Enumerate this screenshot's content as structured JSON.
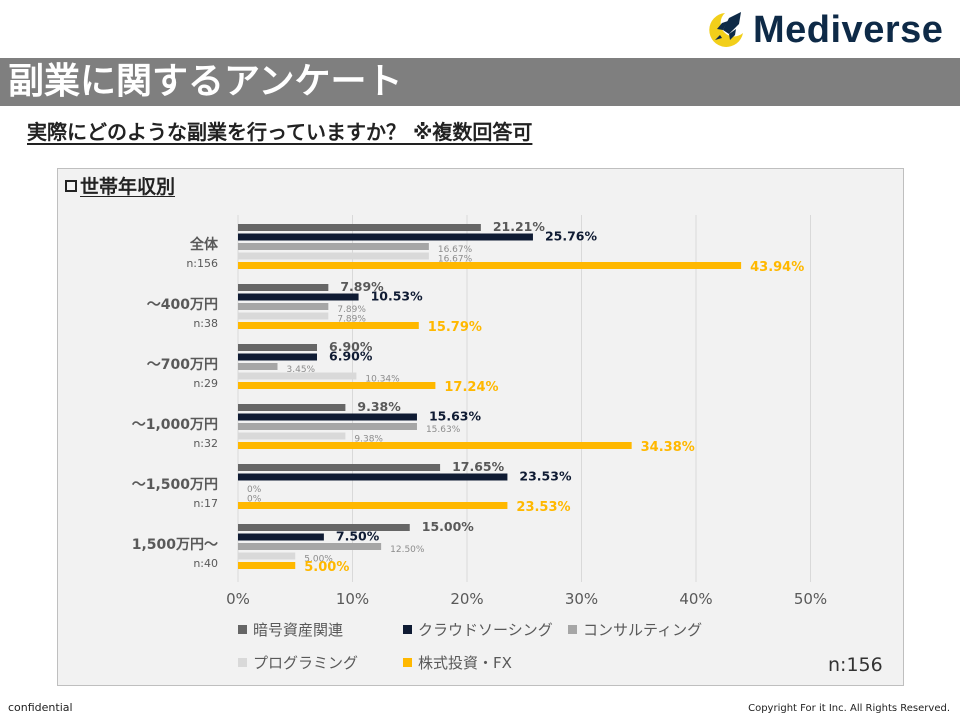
{
  "brand": {
    "name": "Mediverse"
  },
  "header": {
    "title": "副業に関するアンケート"
  },
  "subtitle": "実際にどのような副業を行っていますか？ ※複数回答可",
  "panel": {
    "title": "世帯年収別",
    "n_total": "n:156"
  },
  "footer": {
    "left": "confidential",
    "right": "Copyright For it Inc. All Rights Reserved."
  },
  "colors": {
    "series1": "#666666",
    "series2": "#0f1b33",
    "series3": "#a6a6a6",
    "series4": "#d9d9d9",
    "series5": "#ffb800",
    "grid": "#d9d9d9",
    "label_dark": "#595959",
    "label_light": "#8c8c8c"
  },
  "chart_data": {
    "type": "bar",
    "orientation": "horizontal",
    "title": "世帯年収別",
    "categories": [
      {
        "label": "全体",
        "n": "n:156"
      },
      {
        "label": "～400万円",
        "n": "n:38"
      },
      {
        "label": "～700万円",
        "n": "n:29"
      },
      {
        "label": "～1,000万円",
        "n": "n:32"
      },
      {
        "label": "～1,500万円",
        "n": "n:17"
      },
      {
        "label": "1,500万円～",
        "n": "n:40"
      }
    ],
    "series": [
      {
        "name": "暗号資産関連",
        "values": [
          21.21,
          7.89,
          6.9,
          9.38,
          17.65,
          15.0
        ],
        "labels": [
          "21.21%",
          "7.89%",
          "6.90%",
          "9.38%",
          "17.65%",
          "15.00%"
        ]
      },
      {
        "name": "クラウドソーシング",
        "values": [
          25.76,
          10.53,
          6.9,
          15.63,
          23.53,
          7.5
        ],
        "labels": [
          "25.76%",
          "10.53%",
          "6.90%",
          "15.63%",
          "23.53%",
          "7.50%"
        ]
      },
      {
        "name": "コンサルティング",
        "values": [
          16.67,
          7.89,
          3.45,
          15.63,
          0,
          12.5
        ],
        "labels": [
          "16.67%",
          "7.89%",
          "3.45%",
          "15.63%",
          "0%",
          "12.50%"
        ]
      },
      {
        "name": "プログラミング",
        "values": [
          16.67,
          7.89,
          10.34,
          9.38,
          0,
          5.0
        ],
        "labels": [
          "16.67%",
          "7.89%",
          "10.34%",
          "9.38%",
          "0%",
          "5.00%"
        ]
      },
      {
        "name": "株式投資・FX",
        "values": [
          43.94,
          15.79,
          17.24,
          34.38,
          23.53,
          5.0
        ],
        "labels": [
          "43.94%",
          "15.79%",
          "17.24%",
          "34.38%",
          "23.53%",
          "5.00%"
        ]
      }
    ],
    "x_ticks": [
      "0%",
      "10%",
      "20%",
      "30%",
      "40%",
      "50%"
    ],
    "xlim": [
      0,
      50
    ],
    "xlabel": "",
    "ylabel": "",
    "grid": true,
    "legend_position": "bottom"
  }
}
